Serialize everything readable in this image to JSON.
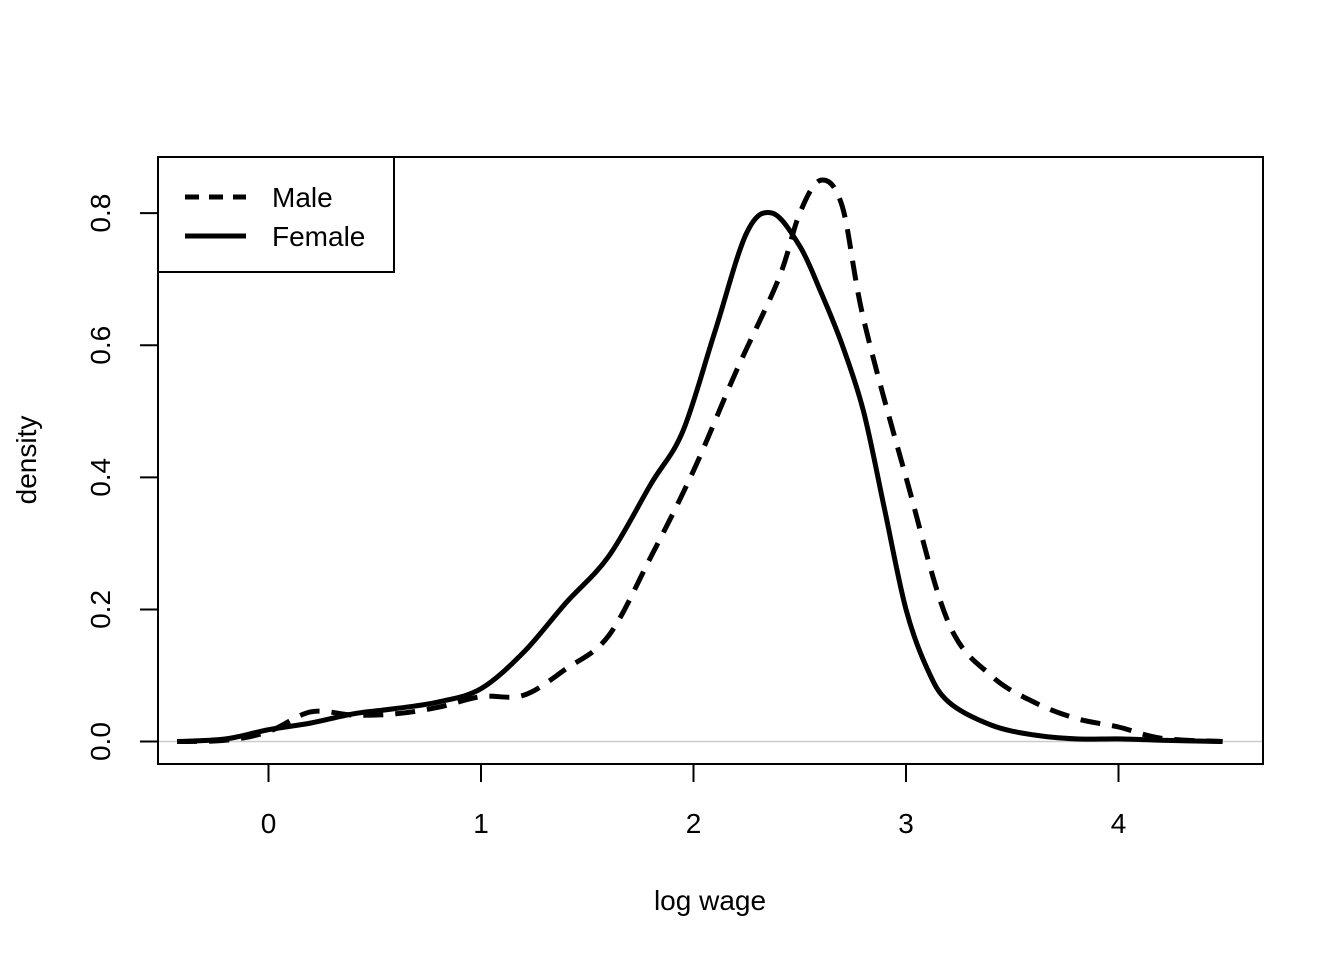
{
  "chart_data": {
    "type": "line",
    "title": "",
    "xlabel": "log wage",
    "ylabel": "density",
    "xlim": [
      -0.52,
      4.68
    ],
    "ylim": [
      -0.034,
      0.885
    ],
    "x_ticks": [
      0,
      1,
      2,
      3,
      4
    ],
    "x_tick_labels": [
      "0",
      "1",
      "2",
      "3",
      "4"
    ],
    "y_ticks": [
      0.0,
      0.2,
      0.4,
      0.6,
      0.8
    ],
    "y_tick_labels": [
      "0.0",
      "0.2",
      "0.4",
      "0.6",
      "0.8"
    ],
    "baseline": 0,
    "grid": false,
    "legend_position": "top-left",
    "series": [
      {
        "name": "Male",
        "style": "dashed",
        "color": "#000000",
        "x": [
          -0.43,
          -0.2,
          0.0,
          0.2,
          0.4,
          0.6,
          0.8,
          1.0,
          1.2,
          1.4,
          1.6,
          1.8,
          2.0,
          2.2,
          2.4,
          2.5,
          2.6,
          2.7,
          2.8,
          3.0,
          3.2,
          3.4,
          3.6,
          3.8,
          4.0,
          4.2,
          4.49
        ],
        "y": [
          0.0,
          0.002,
          0.015,
          0.045,
          0.04,
          0.042,
          0.052,
          0.068,
          0.07,
          0.11,
          0.16,
          0.28,
          0.41,
          0.56,
          0.7,
          0.8,
          0.85,
          0.81,
          0.64,
          0.4,
          0.18,
          0.1,
          0.06,
          0.035,
          0.022,
          0.005,
          0.0
        ]
      },
      {
        "name": "Female",
        "style": "solid",
        "color": "#000000",
        "x": [
          -0.43,
          -0.2,
          0.0,
          0.2,
          0.4,
          0.6,
          0.8,
          1.0,
          1.2,
          1.4,
          1.6,
          1.8,
          1.95,
          2.1,
          2.25,
          2.37,
          2.5,
          2.6,
          2.7,
          2.8,
          2.9,
          3.0,
          3.1,
          3.2,
          3.4,
          3.6,
          3.8,
          4.0,
          4.2,
          4.49
        ],
        "y": [
          0.0,
          0.004,
          0.018,
          0.028,
          0.042,
          0.05,
          0.06,
          0.08,
          0.135,
          0.21,
          0.28,
          0.39,
          0.47,
          0.62,
          0.77,
          0.8,
          0.75,
          0.68,
          0.6,
          0.5,
          0.35,
          0.2,
          0.11,
          0.06,
          0.025,
          0.01,
          0.004,
          0.004,
          0.002,
          0.0
        ]
      }
    ]
  }
}
